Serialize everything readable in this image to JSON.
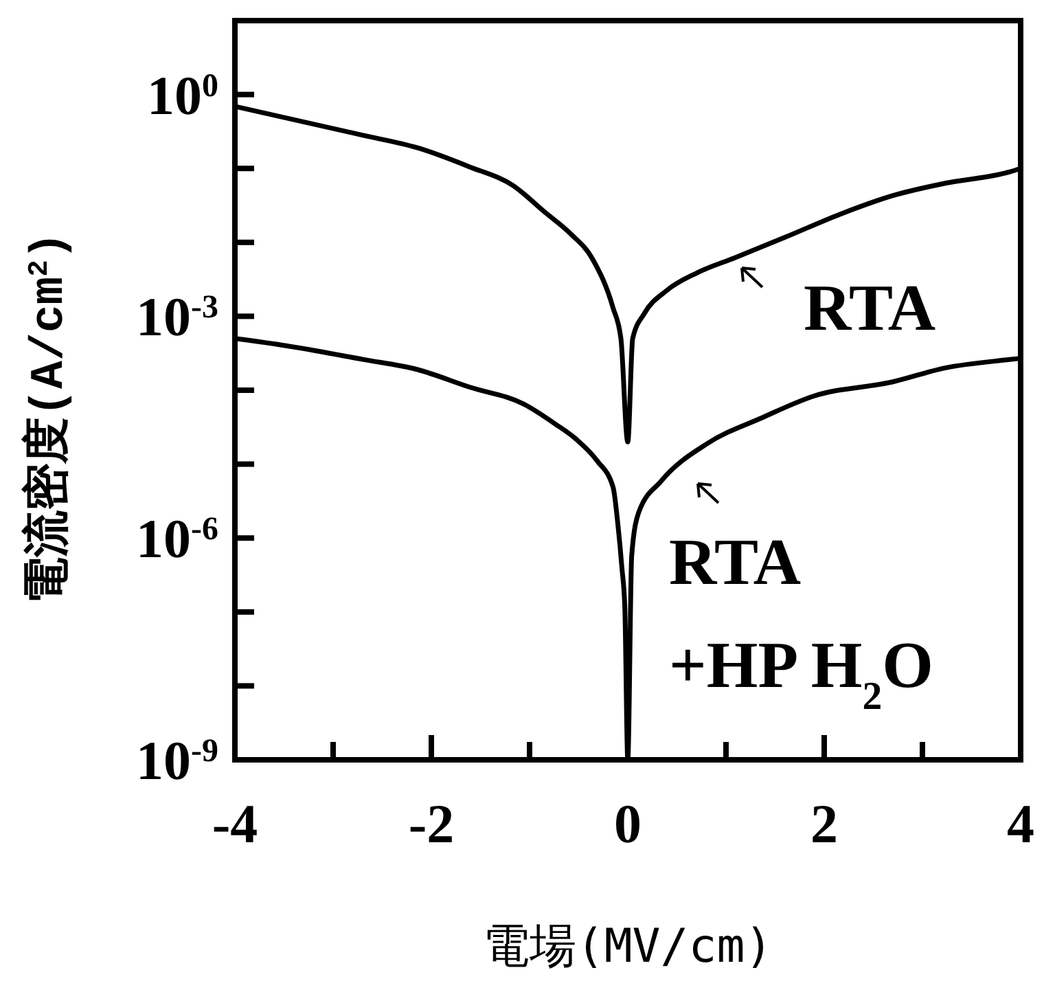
{
  "chart_data": {
    "type": "line",
    "xlabel": "電場(MV/cm)",
    "ylabel": "電流密度(A/cm$^{2}$)",
    "log": "y",
    "grid": false,
    "marker": "none",
    "line_style": "solid",
    "xlim": [
      -4,
      4
    ],
    "ylim": [
      1e-09,
      10
    ],
    "xticks": [
      -4,
      {
        "value": -3,
        "label": null
      },
      -2,
      {
        "value": -1,
        "label": null
      },
      0,
      {
        "value": 1,
        "label": null
      },
      2,
      {
        "value": 3,
        "label": null
      },
      4
    ],
    "yticks": [
      {
        "value": 1e-09,
        "label": "10$^{-9}$"
      },
      {
        "value": 1e-08,
        "label": null
      },
      {
        "value": 1e-07,
        "label": null
      },
      {
        "value": 1e-06,
        "label": "10$^{-6}$"
      },
      {
        "value": 1e-05,
        "label": null
      },
      {
        "value": 0.0001,
        "label": null
      },
      {
        "value": 0.001,
        "label": "10$^{-3}$"
      },
      {
        "value": 0.01,
        "label": null
      },
      {
        "value": 0.1,
        "label": null
      },
      {
        "value": 1,
        "label": "10$^{0}$"
      },
      {
        "value": 10,
        "label": null
      }
    ],
    "annotations": [
      "RTA",
      "RTA\n+HP H$_{2}$O"
    ],
    "series": [
      {
        "color": "#000000",
        "x": [
          -4,
          -2.69,
          -2.14,
          -1.61,
          -1.17,
          -0.85,
          -0.58,
          -0.36,
          -0.15,
          -0.07,
          0,
          0.05,
          0.17,
          0.39,
          0.71,
          1.09,
          1.62,
          2.16,
          2.7,
          3.23,
          3.89,
          4
        ],
        "values": [
          0.69,
          0.28,
          0.19,
          0.105,
          0.059,
          0.026,
          0.013,
          0.006,
          0.0013,
          0.0005,
          2e-05,
          0.0005,
          0.0011,
          0.0022,
          0.0039,
          0.0062,
          0.012,
          0.024,
          0.043,
          0.063,
          0.09,
          0.1
        ]
      },
      {
        "color": "#000000",
        "x": [
          -4,
          -3.48,
          -2.69,
          -2.14,
          -1.61,
          -1.06,
          -0.74,
          -0.53,
          -0.31,
          -0.15,
          -0.1,
          -0.06,
          -0.03,
          0,
          0.04,
          0.11,
          0.34,
          0.81,
          1.36,
          1.89,
          2.7,
          3.23,
          3.89,
          4
        ],
        "values": [
          0.0005,
          0.0004,
          0.00026,
          0.00019,
          0.00011,
          6.5e-05,
          3.5e-05,
          2.2e-05,
          1.1e-05,
          4.9e-06,
          1.5e-06,
          4e-07,
          1.15e-07,
          1e-09,
          5.8e-07,
          2.2e-06,
          5.9e-06,
          1.9e-05,
          4.2e-05,
          8.3e-05,
          0.00013,
          0.0002,
          0.00026,
          0.00027
        ]
      }
    ]
  }
}
